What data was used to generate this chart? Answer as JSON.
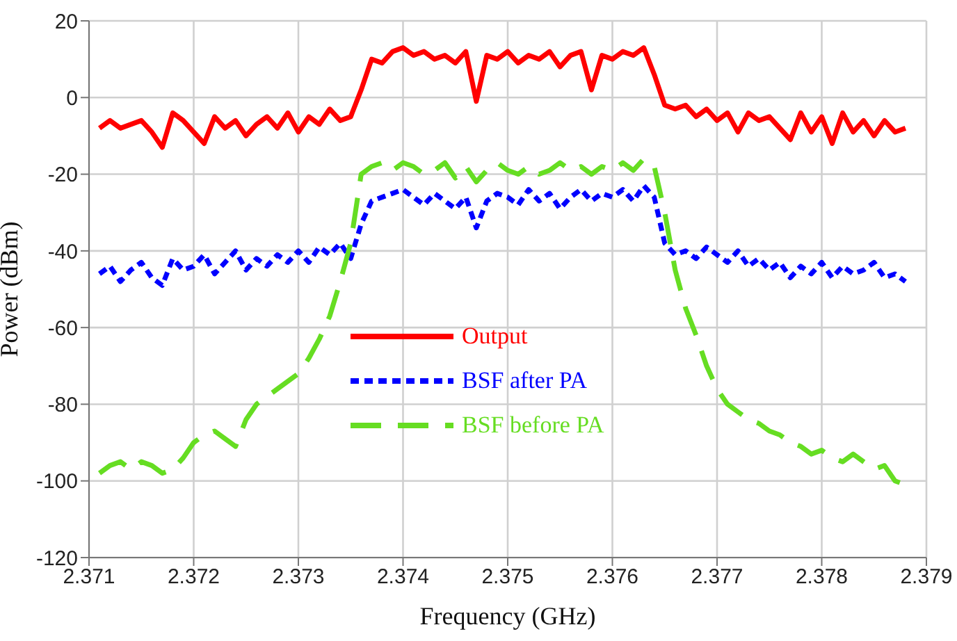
{
  "chart_data": {
    "type": "line",
    "xlabel": "Frequency (GHz)",
    "ylabel": "Power (dBm)",
    "xlim": [
      2.371,
      2.379
    ],
    "xticks": [
      2.371,
      2.372,
      2.373,
      2.374,
      2.375,
      2.376,
      2.377,
      2.378,
      2.379
    ],
    "ylim": [
      -120,
      20
    ],
    "yticks": [
      -120,
      -100,
      -80,
      -60,
      -40,
      -20,
      0,
      20
    ],
    "grid": true,
    "legend": "center",
    "marker": "none",
    "x": [
      2.3711,
      2.3712,
      2.3713,
      2.3714,
      2.3715,
      2.3716,
      2.3717,
      2.3718,
      2.3719,
      2.372,
      2.3721,
      2.3722,
      2.3723,
      2.3724,
      2.3725,
      2.3726,
      2.3727,
      2.3728,
      2.3729,
      2.373,
      2.3731,
      2.3732,
      2.3733,
      2.3734,
      2.3735,
      2.3736,
      2.3737,
      2.3738,
      2.3739,
      2.374,
      2.3741,
      2.3742,
      2.3743,
      2.3744,
      2.3745,
      2.3746,
      2.3747,
      2.3748,
      2.3749,
      2.375,
      2.3751,
      2.3752,
      2.3753,
      2.3754,
      2.3755,
      2.3756,
      2.3757,
      2.3758,
      2.3759,
      2.376,
      2.3761,
      2.3762,
      2.3763,
      2.3764,
      2.3765,
      2.3766,
      2.3767,
      2.3768,
      2.3769,
      2.377,
      2.3771,
      2.3772,
      2.3773,
      2.3774,
      2.3775,
      2.3776,
      2.3777,
      2.3778,
      2.3779,
      2.378,
      2.3781,
      2.3782,
      2.3783,
      2.3784,
      2.3785,
      2.3786,
      2.3787,
      2.3788
    ],
    "series": [
      {
        "name": "Output",
        "color": "#ff0000",
        "line_style": "solid",
        "values": [
          -8,
          -6,
          -8,
          -7,
          -6,
          -9,
          -13,
          -4,
          -6,
          -9,
          -12,
          -5,
          -8,
          -6,
          -10,
          -7,
          -5,
          -8,
          -4,
          -9,
          -5,
          -7,
          -3,
          -6,
          -5,
          2,
          10,
          9,
          12,
          13,
          11,
          12,
          10,
          11,
          9,
          12,
          -1,
          11,
          10,
          12,
          9,
          11,
          10,
          12,
          8,
          11,
          12,
          2,
          11,
          10,
          12,
          11,
          13,
          6,
          -2,
          -3,
          -2,
          -5,
          -3,
          -6,
          -4,
          -9,
          -4,
          -6,
          -5,
          -8,
          -11,
          -4,
          -9,
          -5,
          -12,
          -4,
          -9,
          -6,
          -10,
          -6,
          -9,
          -8
        ]
      },
      {
        "name": "BSF after PA",
        "color": "#0000ff",
        "line_style": "dotted",
        "values": [
          -46,
          -44,
          -48,
          -45,
          -43,
          -47,
          -49,
          -42,
          -45,
          -44,
          -41,
          -46,
          -43,
          -40,
          -45,
          -42,
          -44,
          -41,
          -43,
          -40,
          -43,
          -39,
          -41,
          -38,
          -42,
          -33,
          -27,
          -26,
          -25,
          -24,
          -26,
          -28,
          -25,
          -27,
          -29,
          -26,
          -34,
          -27,
          -25,
          -26,
          -28,
          -24,
          -27,
          -25,
          -29,
          -26,
          -24,
          -27,
          -25,
          -26,
          -24,
          -27,
          -23,
          -26,
          -38,
          -41,
          -40,
          -42,
          -39,
          -41,
          -43,
          -40,
          -44,
          -42,
          -45,
          -43,
          -47,
          -44,
          -46,
          -43,
          -47,
          -44,
          -46,
          -45,
          -43,
          -47,
          -46,
          -48
        ]
      },
      {
        "name": "BSF before PA",
        "color": "#66dd22",
        "line_style": "dashed",
        "values": [
          -98,
          -96,
          -95,
          -97,
          -95,
          -96,
          -98,
          -97,
          -94,
          -90,
          -88,
          -87,
          -89,
          -91,
          -84,
          -80,
          -78,
          -76,
          -74,
          -72,
          -68,
          -63,
          -57,
          -48,
          -38,
          -20,
          -18,
          -17,
          -19,
          -17,
          -18,
          -20,
          -19,
          -17,
          -21,
          -18,
          -22,
          -19,
          -17,
          -19,
          -20,
          -18,
          -20,
          -19,
          -17,
          -19,
          -18,
          -20,
          -18,
          -19,
          -17,
          -19,
          -16,
          -18,
          -30,
          -45,
          -55,
          -62,
          -70,
          -76,
          -80,
          -82,
          -84,
          -85,
          -87,
          -88,
          -90,
          -91,
          -93,
          -92,
          -94,
          -95,
          -93,
          -95,
          -97,
          -96,
          -100,
          -101
        ]
      }
    ]
  }
}
